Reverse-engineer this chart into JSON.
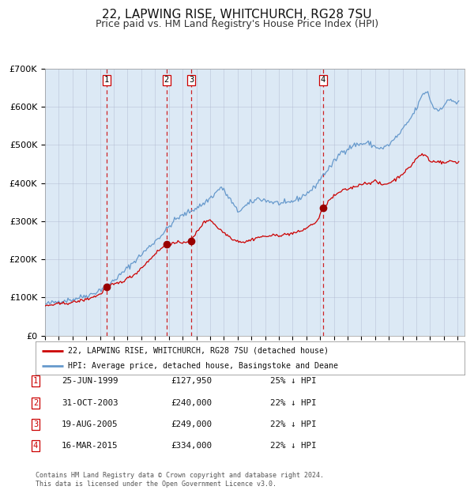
{
  "title": "22, LAPWING RISE, WHITCHURCH, RG28 7SU",
  "subtitle": "Price paid vs. HM Land Registry's House Price Index (HPI)",
  "background_color": "#dce9f5",
  "plot_bg_color": "#dce9f5",
  "fig_bg_color": "#ffffff",
  "red_line_label": "22, LAPWING RISE, WHITCHURCH, RG28 7SU (detached house)",
  "blue_line_label": "HPI: Average price, detached house, Basingstoke and Deane",
  "transactions": [
    {
      "num": 1,
      "date_label": "25-JUN-1999",
      "date_x": 1999.479,
      "price": 127950,
      "price_label": "£127,950",
      "pct": "25% ↓ HPI"
    },
    {
      "num": 2,
      "date_label": "31-OCT-2003",
      "date_x": 2003.833,
      "price": 240000,
      "price_label": "£240,000",
      "pct": "22% ↓ HPI"
    },
    {
      "num": 3,
      "date_label": "19-AUG-2005",
      "date_x": 2005.635,
      "price": 249000,
      "price_label": "£249,000",
      "pct": "22% ↓ HPI"
    },
    {
      "num": 4,
      "date_label": "16-MAR-2015",
      "date_x": 2015.204,
      "price": 334000,
      "price_label": "£334,000",
      "pct": "22% ↓ HPI"
    }
  ],
  "footer": "Contains HM Land Registry data © Crown copyright and database right 2024.\nThis data is licensed under the Open Government Licence v3.0.",
  "ylim": [
    0,
    700000
  ],
  "yticks": [
    0,
    100000,
    200000,
    300000,
    400000,
    500000,
    600000,
    700000
  ],
  "ytick_labels": [
    "£0",
    "£100K",
    "£200K",
    "£300K",
    "£400K",
    "£500K",
    "£600K",
    "£700K"
  ],
  "xlim_left": 1995.0,
  "xlim_right": 2025.5,
  "red_color": "#cc0000",
  "blue_color": "#6699cc",
  "vline_color": "#cc0000",
  "title_fontsize": 11,
  "subtitle_fontsize": 9,
  "hpi_anchors": [
    [
      1995.0,
      82000
    ],
    [
      1996.0,
      90000
    ],
    [
      1997.0,
      95000
    ],
    [
      1998.5,
      110000
    ],
    [
      1999.5,
      130000
    ],
    [
      2000.5,
      160000
    ],
    [
      2001.5,
      195000
    ],
    [
      2002.5,
      230000
    ],
    [
      2003.5,
      265000
    ],
    [
      2004.5,
      305000
    ],
    [
      2005.5,
      325000
    ],
    [
      2006.5,
      345000
    ],
    [
      2007.3,
      370000
    ],
    [
      2007.8,
      390000
    ],
    [
      2008.5,
      355000
    ],
    [
      2009.0,
      325000
    ],
    [
      2009.8,
      345000
    ],
    [
      2010.5,
      360000
    ],
    [
      2011.5,
      350000
    ],
    [
      2012.5,
      345000
    ],
    [
      2013.5,
      360000
    ],
    [
      2014.5,
      385000
    ],
    [
      2015.2,
      420000
    ],
    [
      2015.8,
      445000
    ],
    [
      2016.5,
      480000
    ],
    [
      2017.5,
      500000
    ],
    [
      2018.5,
      505000
    ],
    [
      2019.0,
      495000
    ],
    [
      2019.5,
      490000
    ],
    [
      2020.0,
      500000
    ],
    [
      2020.8,
      530000
    ],
    [
      2021.5,
      565000
    ],
    [
      2022.0,
      595000
    ],
    [
      2022.5,
      635000
    ],
    [
      2022.8,
      640000
    ],
    [
      2023.2,
      600000
    ],
    [
      2023.6,
      590000
    ],
    [
      2024.0,
      605000
    ],
    [
      2024.5,
      620000
    ],
    [
      2024.9,
      610000
    ]
  ],
  "red_anchors": [
    [
      1995.0,
      78000
    ],
    [
      1996.0,
      83000
    ],
    [
      1997.0,
      87000
    ],
    [
      1998.0,
      95000
    ],
    [
      1999.0,
      108000
    ],
    [
      1999.479,
      127950
    ],
    [
      2000.5,
      140000
    ],
    [
      2001.5,
      160000
    ],
    [
      2002.5,
      195000
    ],
    [
      2003.0,
      215000
    ],
    [
      2003.833,
      240000
    ],
    [
      2004.5,
      242000
    ],
    [
      2005.635,
      249000
    ],
    [
      2006.0,
      270000
    ],
    [
      2006.5,
      295000
    ],
    [
      2007.0,
      305000
    ],
    [
      2007.5,
      285000
    ],
    [
      2008.0,
      270000
    ],
    [
      2008.8,
      250000
    ],
    [
      2009.5,
      245000
    ],
    [
      2010.5,
      258000
    ],
    [
      2011.5,
      262000
    ],
    [
      2012.5,
      265000
    ],
    [
      2013.5,
      272000
    ],
    [
      2014.0,
      282000
    ],
    [
      2014.8,
      300000
    ],
    [
      2015.204,
      334000
    ],
    [
      2015.8,
      360000
    ],
    [
      2016.5,
      378000
    ],
    [
      2017.5,
      390000
    ],
    [
      2018.0,
      398000
    ],
    [
      2018.5,
      400000
    ],
    [
      2019.0,
      405000
    ],
    [
      2019.5,
      395000
    ],
    [
      2020.0,
      400000
    ],
    [
      2020.5,
      410000
    ],
    [
      2021.0,
      425000
    ],
    [
      2021.5,
      440000
    ],
    [
      2022.0,
      465000
    ],
    [
      2022.4,
      475000
    ],
    [
      2022.8,
      470000
    ],
    [
      2023.0,
      455000
    ],
    [
      2023.5,
      458000
    ],
    [
      2024.0,
      452000
    ],
    [
      2024.5,
      458000
    ],
    [
      2024.9,
      455000
    ]
  ]
}
